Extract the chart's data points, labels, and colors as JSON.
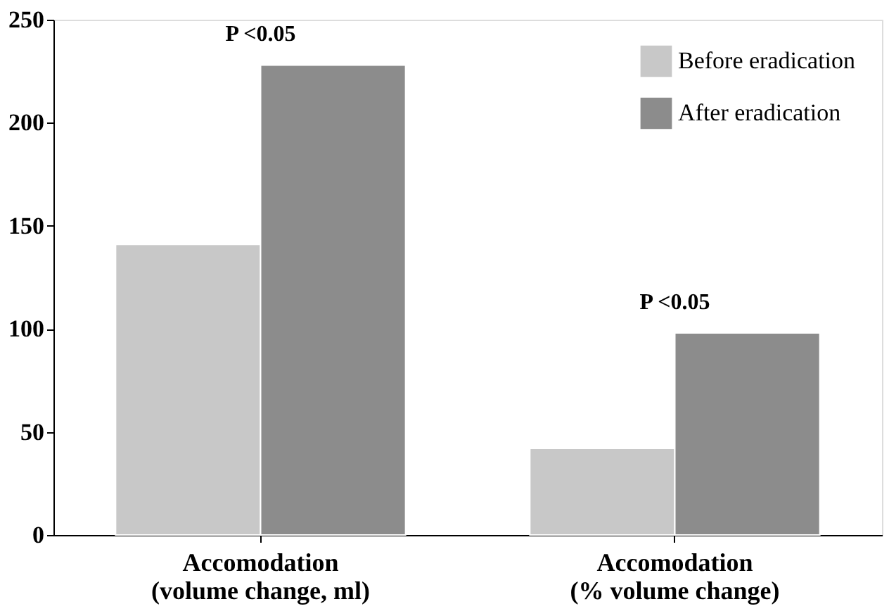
{
  "chart_data": {
    "type": "bar",
    "categories": [
      "Accomodation\n(volume change, ml)",
      "Accomodation\n(% volume change)"
    ],
    "series": [
      {
        "name": "Before eradication",
        "color": "#c8c8c8",
        "values": [
          141,
          42
        ]
      },
      {
        "name": "After eradication",
        "color": "#8c8c8c",
        "values": [
          228,
          98
        ]
      }
    ],
    "ylim": [
      0,
      250
    ],
    "yticks": [
      0,
      50,
      100,
      150,
      200,
      250
    ],
    "grid": false,
    "legend": "top right",
    "annotations": [
      "P <0.05",
      "P <0.05"
    ]
  }
}
